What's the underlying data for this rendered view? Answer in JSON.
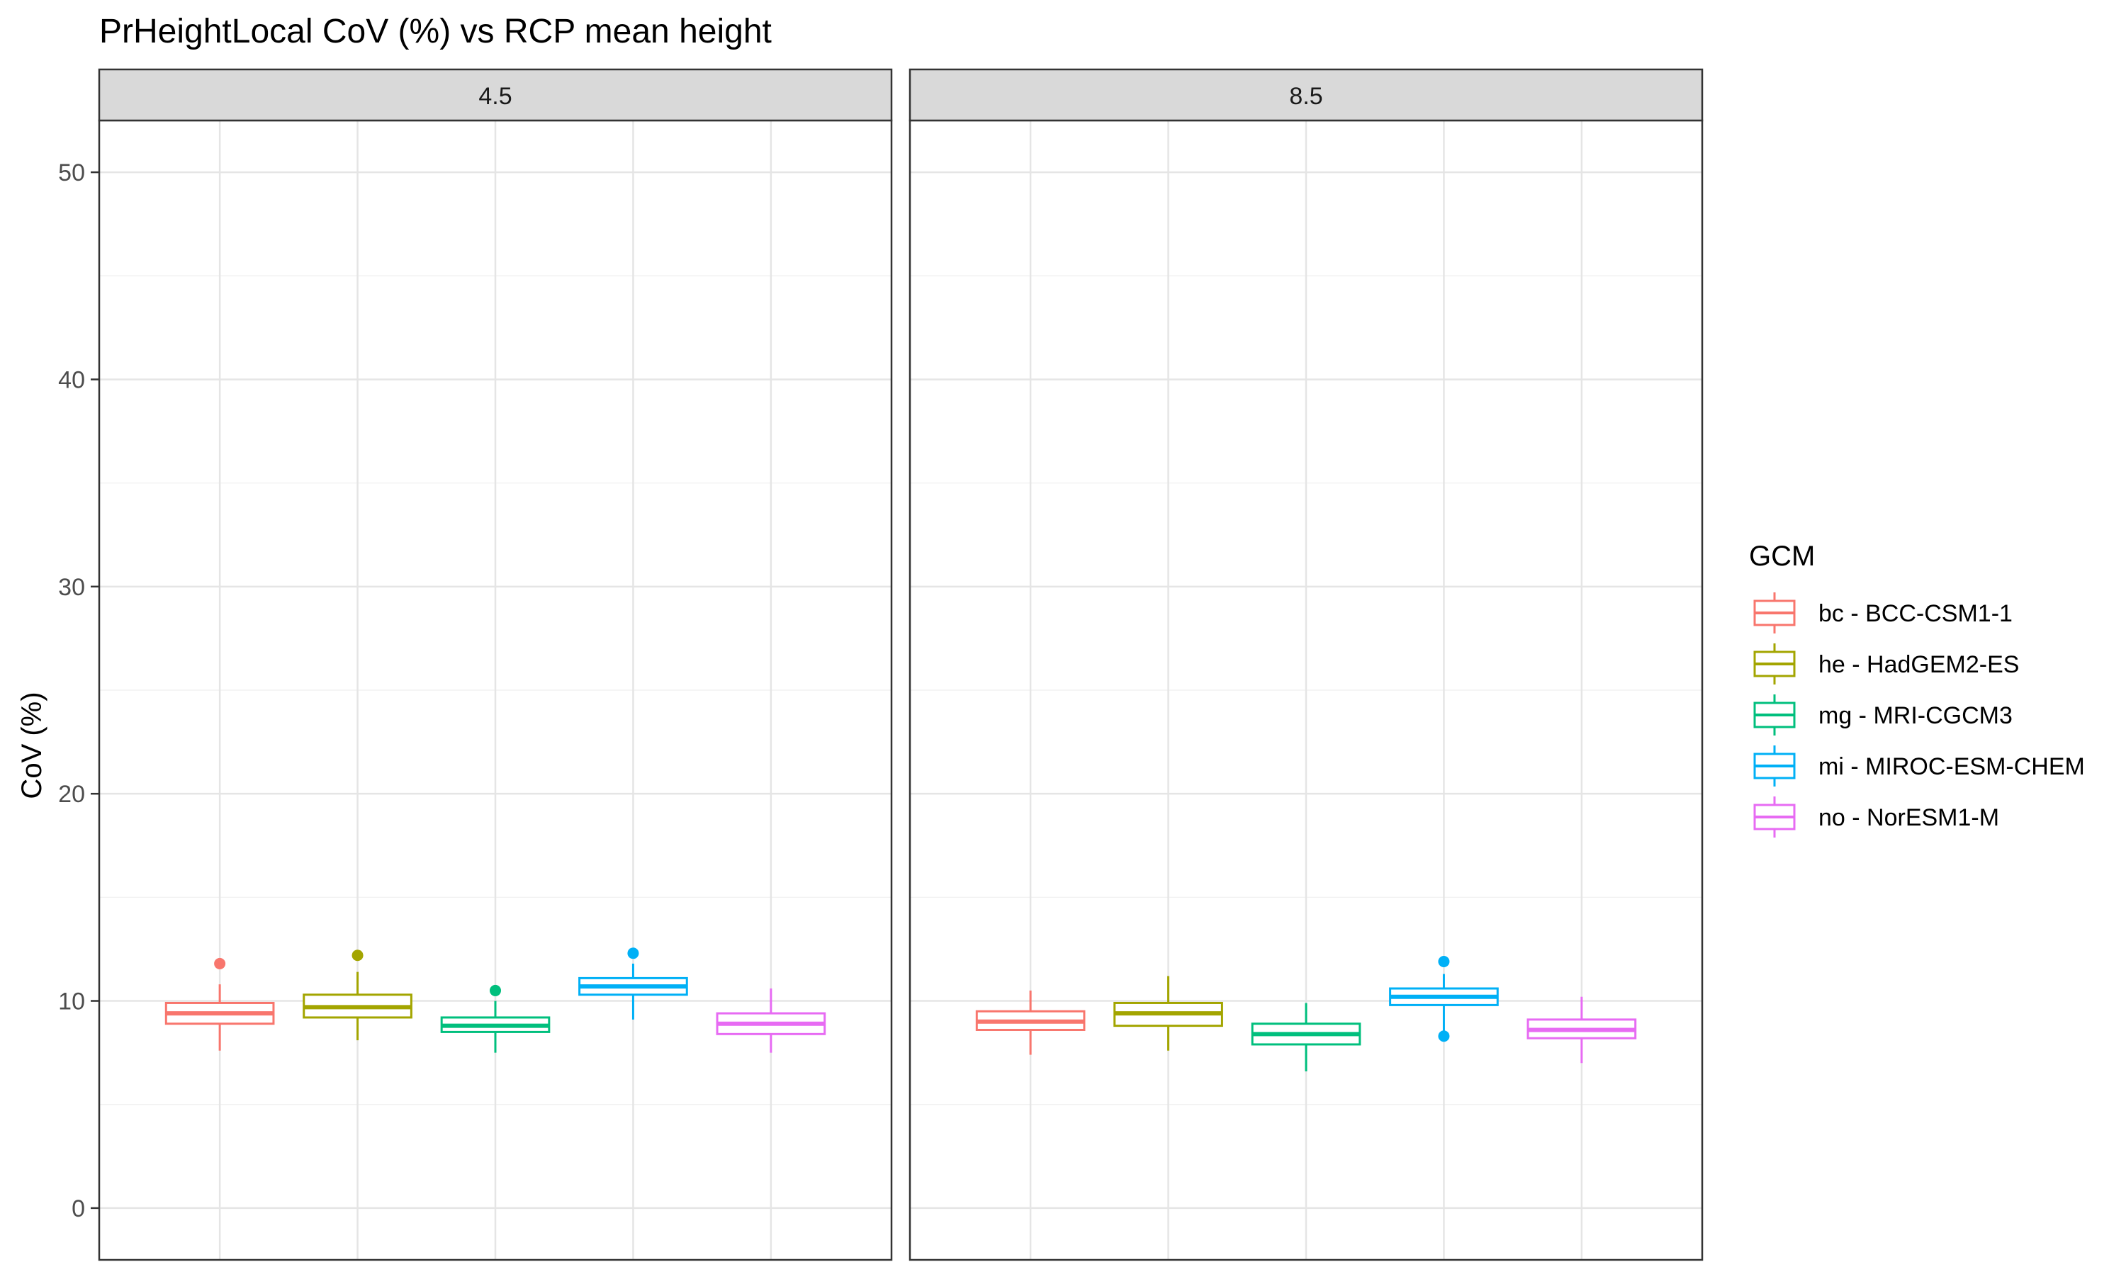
{
  "chart_data": {
    "type": "boxplot",
    "title": "PrHeightLocal CoV (%) vs RCP mean height",
    "ylabel": "CoV (%)",
    "xlabel": "",
    "ylim": [
      -2.5,
      52.5
    ],
    "yticks": [
      0,
      10,
      20,
      30,
      40,
      50
    ],
    "yticks_minor": [
      5,
      15,
      25,
      35,
      45
    ],
    "grid": true,
    "legend": {
      "title": "GCM",
      "placement": "right",
      "entries": [
        "bc - BCC-CSM1-1",
        "he - HadGEM2-ES",
        "mg - MRI-CGCM3",
        "mi - MIROC-ESM-CHEM",
        "no - NorESM1-M"
      ]
    },
    "colors": [
      "#F8766D",
      "#A3A500",
      "#00BF7D",
      "#00B0F6",
      "#E76BF3"
    ],
    "panels": [
      {
        "label": "4.5",
        "boxes": [
          {
            "gcm": "bc - BCC-CSM1-1",
            "whisker_low": 7.6,
            "q1": 8.9,
            "median": 9.4,
            "q3": 9.9,
            "whisker_high": 10.8,
            "outliers": [
              11.8
            ]
          },
          {
            "gcm": "he - HadGEM2-ES",
            "whisker_low": 8.1,
            "q1": 9.2,
            "median": 9.7,
            "q3": 10.3,
            "whisker_high": 11.4,
            "outliers": [
              12.2
            ]
          },
          {
            "gcm": "mg - MRI-CGCM3",
            "whisker_low": 7.5,
            "q1": 8.5,
            "median": 8.8,
            "q3": 9.2,
            "whisker_high": 10.0,
            "outliers": [
              10.5
            ]
          },
          {
            "gcm": "mi - MIROC-ESM-CHEM",
            "whisker_low": 9.1,
            "q1": 10.3,
            "median": 10.7,
            "q3": 11.1,
            "whisker_high": 11.8,
            "outliers": [
              12.3
            ]
          },
          {
            "gcm": "no - NorESM1-M",
            "whisker_low": 7.5,
            "q1": 8.4,
            "median": 8.9,
            "q3": 9.4,
            "whisker_high": 10.6,
            "outliers": []
          }
        ]
      },
      {
        "label": "8.5",
        "boxes": [
          {
            "gcm": "bc - BCC-CSM1-1",
            "whisker_low": 7.4,
            "q1": 8.6,
            "median": 9.0,
            "q3": 9.5,
            "whisker_high": 10.5,
            "outliers": []
          },
          {
            "gcm": "he - HadGEM2-ES",
            "whisker_low": 7.6,
            "q1": 8.8,
            "median": 9.4,
            "q3": 9.9,
            "whisker_high": 11.2,
            "outliers": []
          },
          {
            "gcm": "mg - MRI-CGCM3",
            "whisker_low": 6.6,
            "q1": 7.9,
            "median": 8.4,
            "q3": 8.9,
            "whisker_high": 9.9,
            "outliers": []
          },
          {
            "gcm": "mi - MIROC-ESM-CHEM",
            "whisker_low": 8.5,
            "q1": 9.8,
            "median": 10.2,
            "q3": 10.6,
            "whisker_high": 11.3,
            "outliers": [
              11.9,
              8.3
            ]
          },
          {
            "gcm": "no - NorESM1-M",
            "whisker_low": 7.0,
            "q1": 8.2,
            "median": 8.6,
            "q3": 9.1,
            "whisker_high": 10.2,
            "outliers": []
          }
        ]
      }
    ]
  }
}
